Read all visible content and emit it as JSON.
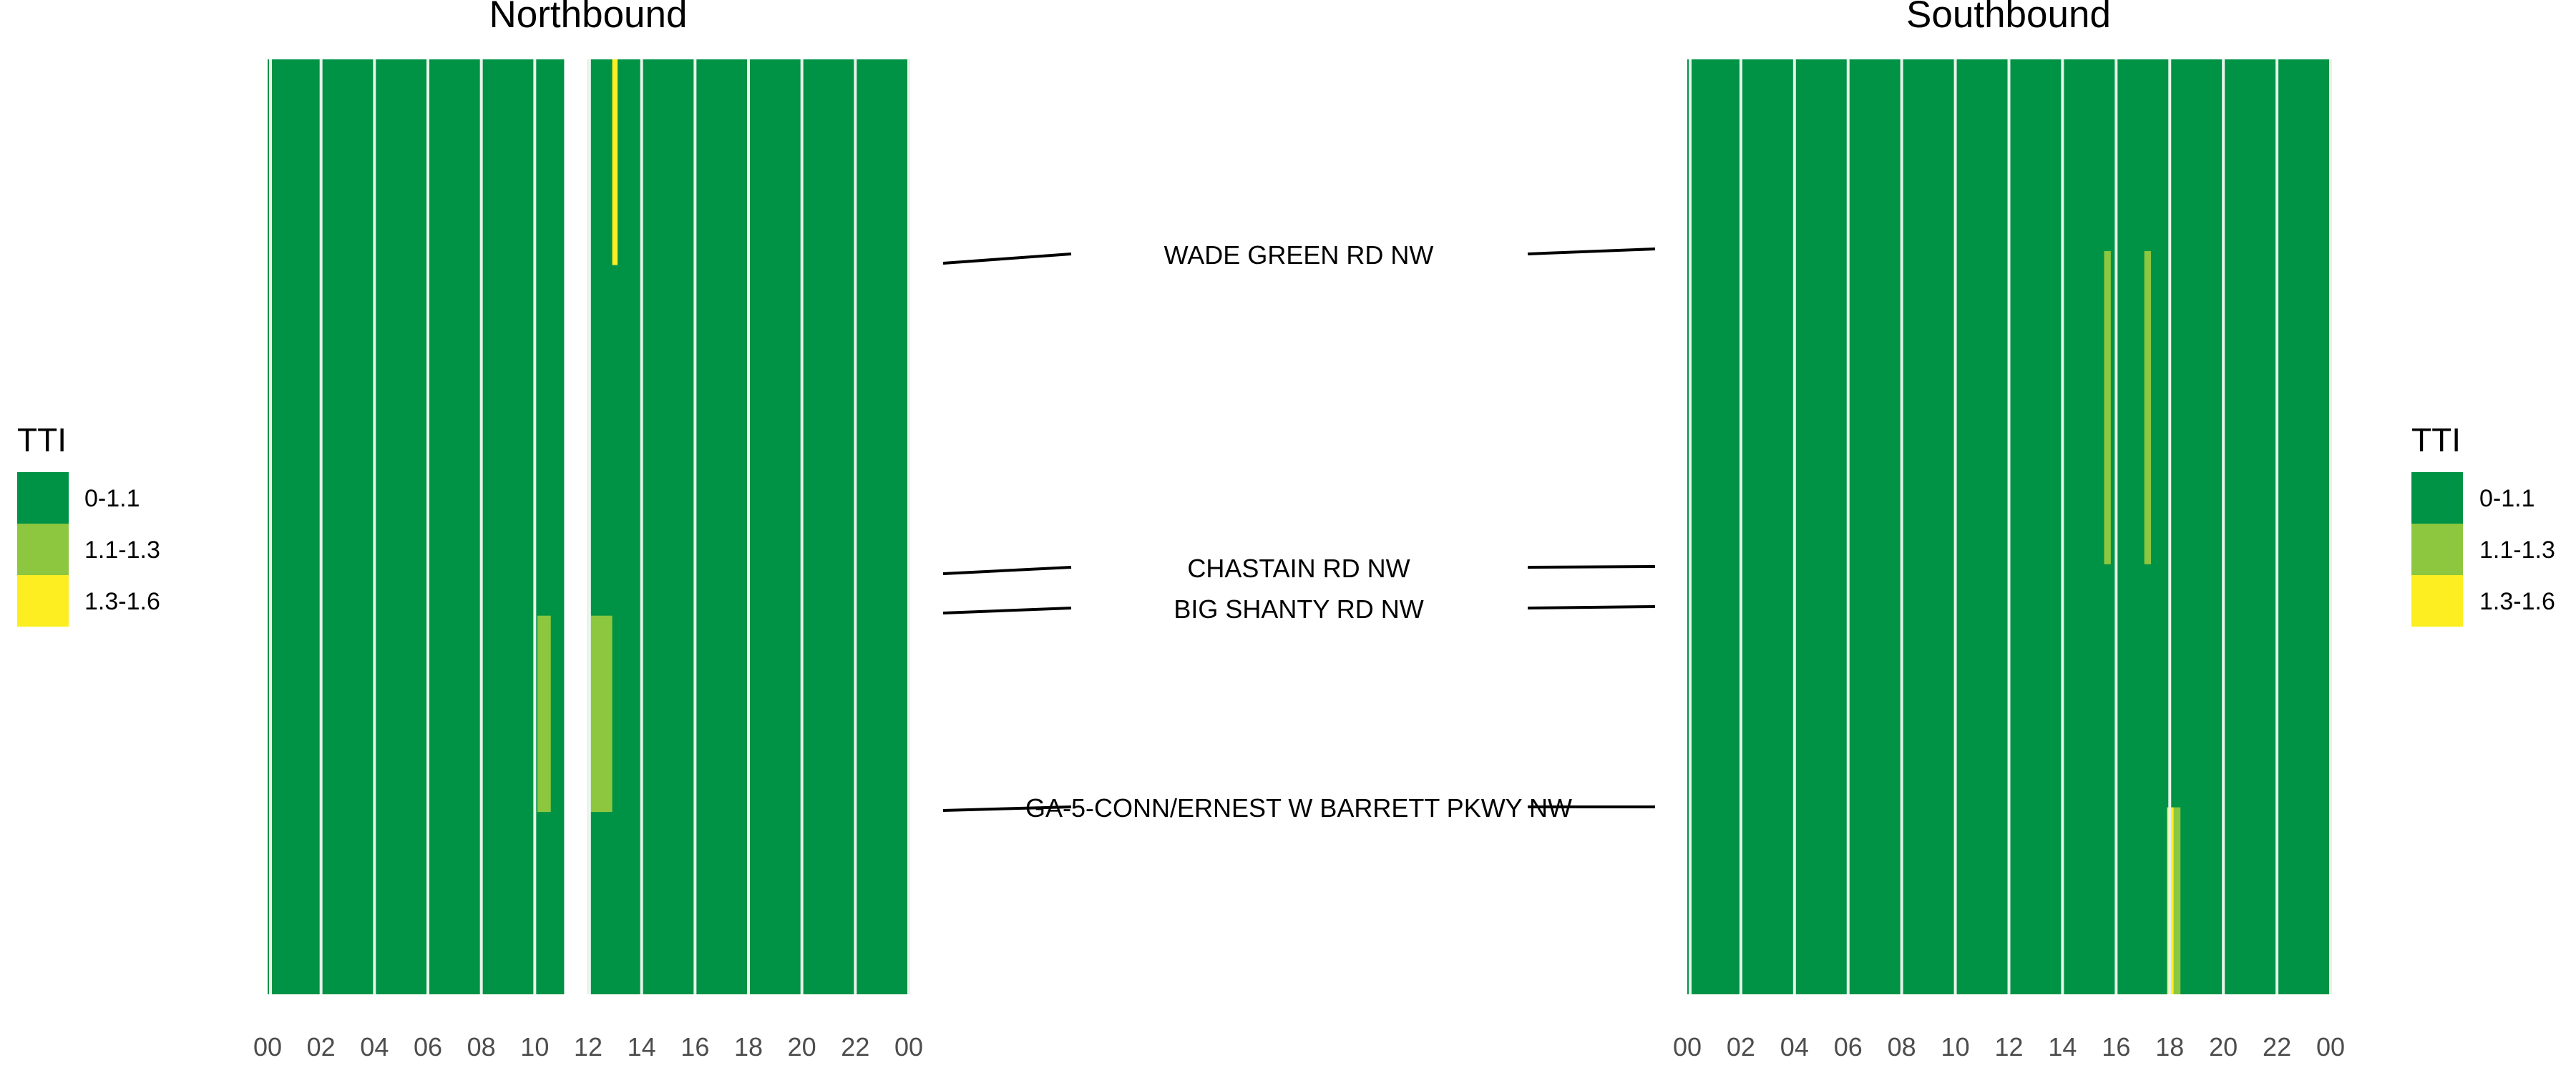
{
  "chart_data": {
    "type": "heatmap",
    "x_axis": {
      "ticks": [
        "00",
        "02",
        "04",
        "06",
        "08",
        "10",
        "12",
        "14",
        "16",
        "18",
        "20",
        "22",
        "00"
      ],
      "range_hours": [
        0,
        24
      ]
    },
    "legend": {
      "title": "TTI",
      "items": [
        {
          "label": "0-1.1",
          "color": "#009245"
        },
        {
          "label": "1.1-1.3",
          "color": "#8dc63f"
        },
        {
          "label": "1.3-1.6",
          "color": "#fcee21"
        }
      ]
    },
    "roads": [
      {
        "label": "WADE GREEN RD NW",
        "position": 0.21
      },
      {
        "label": "CHASTAIN RD NW",
        "position": 0.545
      },
      {
        "label": "BIG SHANTY RD NW",
        "position": 0.588
      },
      {
        "label": "GA-5-CONN/ERNEST W BARRETT PKWY NW",
        "position": 0.797
      }
    ],
    "panels": [
      {
        "title": "Northbound",
        "segment_breaks": [
          0,
          0.21,
          0.545,
          0.588,
          0.797,
          1.0
        ],
        "gaps": [
          {
            "from_hour": 11.1,
            "to_hour": 12.1
          }
        ],
        "anomalies": [
          {
            "from_hour": 12.9,
            "to_hour": 13.1,
            "from_pos": 0,
            "to_pos": 0.22,
            "category": "1.3-1.6"
          },
          {
            "from_hour": 10.1,
            "to_hour": 10.6,
            "from_pos": 0.595,
            "to_pos": 0.805,
            "category": "1.1-1.3"
          },
          {
            "from_hour": 12.1,
            "to_hour": 12.9,
            "from_pos": 0.595,
            "to_pos": 0.805,
            "category": "1.1-1.3"
          }
        ]
      },
      {
        "title": "Southbound",
        "segment_breaks": [
          0,
          0.205,
          0.54,
          0.584,
          0.795,
          1.0
        ],
        "gaps": [],
        "anomalies": [
          {
            "from_hour": 15.55,
            "to_hour": 15.8,
            "from_pos": 0.205,
            "to_pos": 0.54,
            "category": "1.1-1.3"
          },
          {
            "from_hour": 17.05,
            "to_hour": 17.3,
            "from_pos": 0.205,
            "to_pos": 0.54,
            "category": "1.1-1.3"
          },
          {
            "from_hour": 17.9,
            "to_hour": 18.15,
            "from_pos": 0.8,
            "to_pos": 1.0,
            "category": "1.3-1.6"
          },
          {
            "from_hour": 18.15,
            "to_hour": 18.4,
            "from_pos": 0.8,
            "to_pos": 1.0,
            "category": "1.1-1.3"
          }
        ]
      }
    ]
  }
}
